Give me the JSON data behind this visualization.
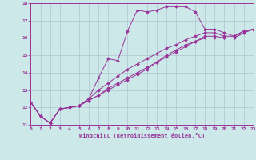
{
  "xlabel": "Windchill (Refroidissement éolien,°C)",
  "bg_color": "#cce8e8",
  "grid_color": "#aabbcc",
  "line_color": "#993399",
  "spine_color": "#993399",
  "xlim": [
    0,
    23
  ],
  "ylim": [
    11,
    18
  ],
  "xticks": [
    0,
    1,
    2,
    3,
    4,
    5,
    6,
    7,
    8,
    9,
    10,
    11,
    12,
    13,
    14,
    15,
    16,
    17,
    18,
    19,
    20,
    21,
    22,
    23
  ],
  "yticks": [
    11,
    12,
    13,
    14,
    15,
    16,
    17,
    18
  ],
  "series": [
    {
      "x": [
        0,
        1,
        2,
        3,
        4,
        5,
        6,
        7,
        8,
        9,
        10,
        11,
        12,
        13,
        14,
        15,
        16,
        17,
        18,
        19,
        20,
        21,
        22,
        23
      ],
      "y": [
        12.3,
        11.5,
        11.1,
        11.9,
        12.0,
        12.1,
        12.5,
        13.7,
        14.8,
        14.7,
        16.4,
        17.6,
        17.5,
        17.6,
        17.8,
        17.8,
        17.8,
        17.5,
        16.5,
        16.5,
        16.3,
        16.1,
        16.4,
        16.5
      ]
    },
    {
      "x": [
        0,
        1,
        2,
        3,
        4,
        5,
        6,
        7,
        8,
        9,
        10,
        11,
        12,
        13,
        14,
        15,
        16,
        17,
        18,
        19,
        20,
        21,
        22,
        23
      ],
      "y": [
        12.3,
        11.5,
        11.1,
        11.9,
        12.0,
        12.1,
        12.5,
        13.0,
        13.4,
        13.8,
        14.2,
        14.5,
        14.8,
        15.1,
        15.4,
        15.6,
        15.9,
        16.1,
        16.3,
        16.3,
        16.1,
        16.1,
        16.4,
        16.5
      ]
    },
    {
      "x": [
        0,
        1,
        2,
        3,
        4,
        5,
        6,
        7,
        8,
        9,
        10,
        11,
        12,
        13,
        14,
        15,
        16,
        17,
        18,
        19,
        20,
        21,
        22,
        23
      ],
      "y": [
        12.3,
        11.5,
        11.1,
        11.9,
        12.0,
        12.1,
        12.4,
        12.7,
        13.1,
        13.4,
        13.7,
        14.0,
        14.3,
        14.6,
        15.0,
        15.3,
        15.6,
        15.8,
        16.1,
        16.1,
        16.0,
        16.0,
        16.3,
        16.5
      ]
    },
    {
      "x": [
        0,
        1,
        2,
        3,
        4,
        5,
        6,
        7,
        8,
        9,
        10,
        11,
        12,
        13,
        14,
        15,
        16,
        17,
        18,
        19,
        20,
        21,
        22,
        23
      ],
      "y": [
        12.3,
        11.5,
        11.1,
        11.9,
        12.0,
        12.1,
        12.4,
        12.7,
        13.0,
        13.3,
        13.6,
        13.9,
        14.2,
        14.6,
        14.9,
        15.2,
        15.5,
        15.8,
        16.0,
        16.0,
        16.0,
        16.0,
        16.3,
        16.5
      ]
    }
  ]
}
